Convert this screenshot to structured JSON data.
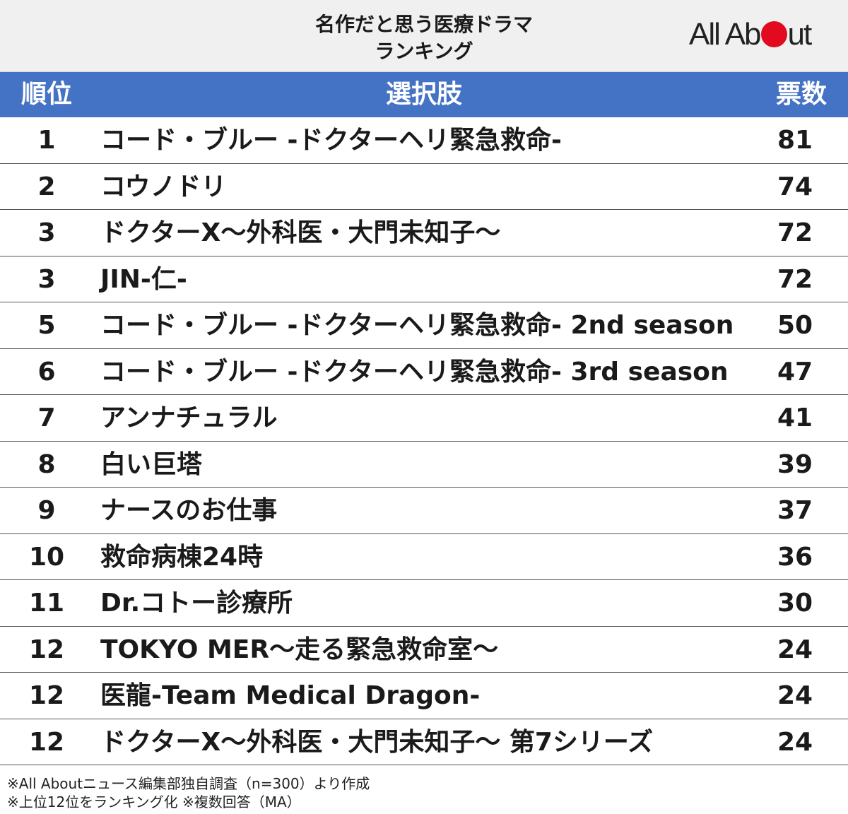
{
  "header": {
    "title_line1": "名作だと思う医療ドラマ",
    "title_line2": "ランキング",
    "logo_text_left": "All Ab",
    "logo_text_right": "ut"
  },
  "table": {
    "col_rank": "順位",
    "col_choice": "選択肢",
    "col_votes": "票数"
  },
  "chart_data": {
    "type": "table",
    "title": "名作だと思う医療ドラマ ランキング",
    "columns": [
      "順位",
      "選択肢",
      "票数"
    ],
    "rows": [
      {
        "rank": "1",
        "label": "コード・ブルー -ドクターヘリ緊急救命-",
        "value": "81"
      },
      {
        "rank": "2",
        "label": "コウノドリ",
        "value": "74"
      },
      {
        "rank": "3",
        "label": "ドクターX〜外科医・大門未知子〜",
        "value": "72"
      },
      {
        "rank": "3",
        "label": "JIN-仁-",
        "value": "72"
      },
      {
        "rank": "5",
        "label": "コード・ブルー -ドクターヘリ緊急救命- 2nd season",
        "value": "50"
      },
      {
        "rank": "6",
        "label": "コード・ブルー -ドクターヘリ緊急救命- 3rd season",
        "value": "47"
      },
      {
        "rank": "7",
        "label": "アンナチュラル",
        "value": "41"
      },
      {
        "rank": "8",
        "label": "白い巨塔",
        "value": "39"
      },
      {
        "rank": "9",
        "label": "ナースのお仕事",
        "value": "37"
      },
      {
        "rank": "10",
        "label": "救命病棟24時",
        "value": "36"
      },
      {
        "rank": "11",
        "label": "Dr.コトー診療所",
        "value": "30"
      },
      {
        "rank": "12",
        "label": "TOKYO MER〜走る緊急救命室〜",
        "value": "24"
      },
      {
        "rank": "12",
        "label": "医龍-Team Medical Dragon-",
        "value": "24"
      },
      {
        "rank": "12",
        "label": "ドクターX〜外科医・大門未知子〜 第7シリーズ",
        "value": "24"
      }
    ]
  },
  "footnotes": {
    "line1": "※All Aboutニュース編集部独自調査（n=300）より作成",
    "line2": "※上位12位をランキング化 ※複数回答（MA）"
  },
  "colors": {
    "header_bg": "#f0f0f0",
    "table_header_bg": "#4472c4",
    "logo_red": "#e10a1e"
  }
}
